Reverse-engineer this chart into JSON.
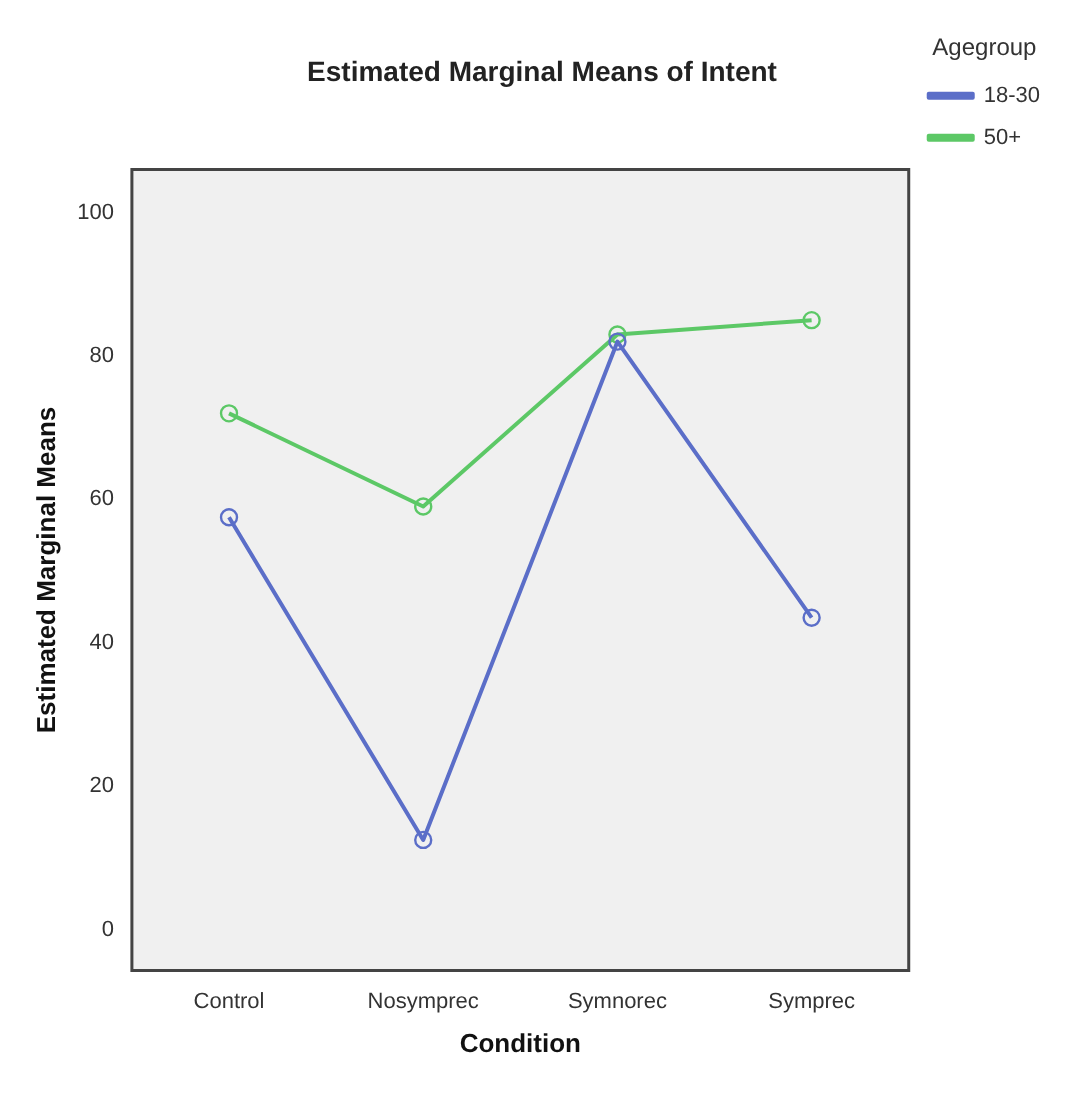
{
  "chart_data": {
    "type": "line",
    "title": "Estimated Marginal Means of Intent",
    "xlabel": "Condition",
    "ylabel": "Estimated Marginal Means",
    "legend_title": "Agegroup",
    "categories": [
      "Control",
      "Nosymprec",
      "Symnorec",
      "Symprec"
    ],
    "series": [
      {
        "name": "18-30",
        "color": "#5b6ec8",
        "values": [
          57.5,
          12.5,
          82,
          43.5
        ]
      },
      {
        "name": "50+",
        "color": "#5cc866",
        "values": [
          72,
          59,
          83,
          85
        ]
      }
    ],
    "ylim": [
      -5.7,
      106
    ],
    "yticks": [
      0,
      20,
      40,
      60,
      80,
      100
    ],
    "grid": false,
    "legend": "top right",
    "marker": "circle",
    "line_style": "solid"
  }
}
